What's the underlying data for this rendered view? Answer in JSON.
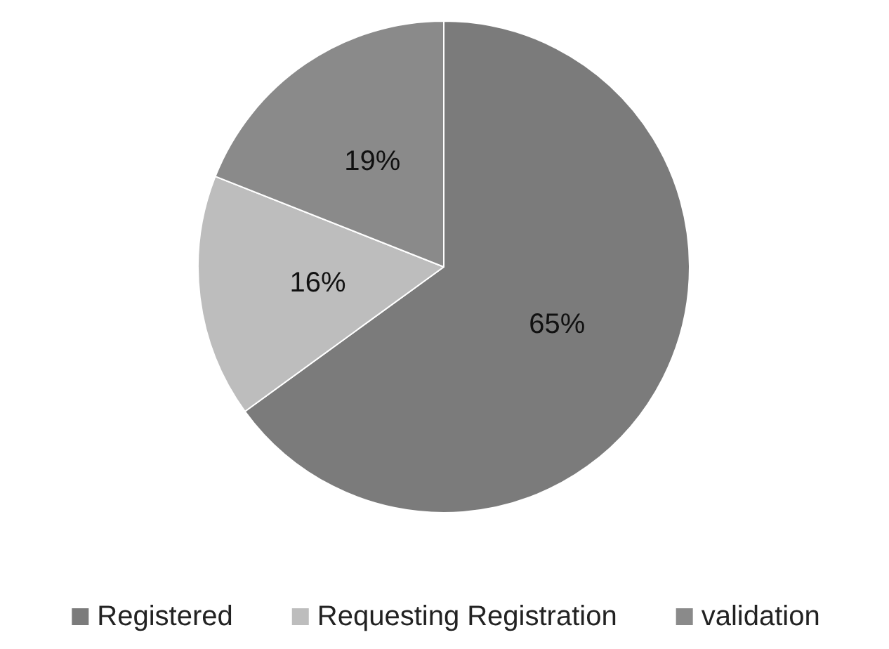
{
  "chart_data": {
    "type": "pie",
    "categories": [
      "Registered",
      "Requesting Registration",
      "validation"
    ],
    "values": [
      65,
      16,
      19
    ],
    "colors": [
      "#7b7b7b",
      "#bdbdbd",
      "#8a8a8a"
    ],
    "value_labels": [
      "65%",
      "16%",
      "19%"
    ],
    "legend": "bottom"
  }
}
